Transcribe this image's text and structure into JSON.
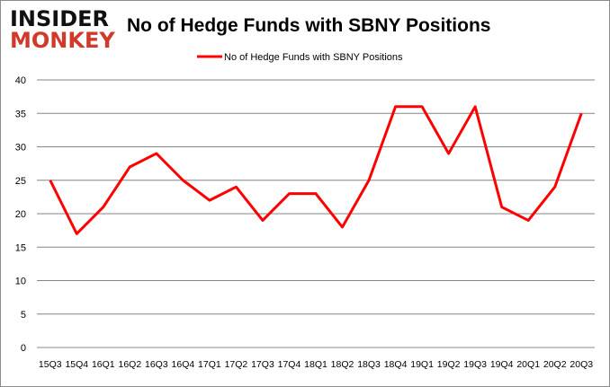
{
  "logo": {
    "line1": "INSIDER",
    "line2": "MONKEY"
  },
  "chart_data": {
    "type": "line",
    "title": "No of Hedge Funds with SBNY Positions",
    "categories": [
      "15Q3",
      "15Q4",
      "16Q1",
      "16Q2",
      "16Q3",
      "16Q4",
      "17Q1",
      "17Q2",
      "17Q3",
      "17Q4",
      "18Q1",
      "18Q2",
      "18Q3",
      "18Q4",
      "19Q1",
      "19Q2",
      "19Q3",
      "19Q4",
      "20Q1",
      "20Q2",
      "20Q3"
    ],
    "series": [
      {
        "name": "No of Hedge Funds with SBNY Positions",
        "color": "#ff0000",
        "values": [
          25,
          17,
          21,
          27,
          29,
          25,
          22,
          24,
          19,
          23,
          23,
          18,
          25,
          36,
          36,
          29,
          36,
          21,
          19,
          24,
          35
        ]
      }
    ],
    "ylim": [
      0,
      40
    ],
    "yticks": [
      0,
      5,
      10,
      15,
      20,
      25,
      30,
      35,
      40
    ],
    "grid": true,
    "legend": "top-center",
    "xlabel": "",
    "ylabel": ""
  }
}
